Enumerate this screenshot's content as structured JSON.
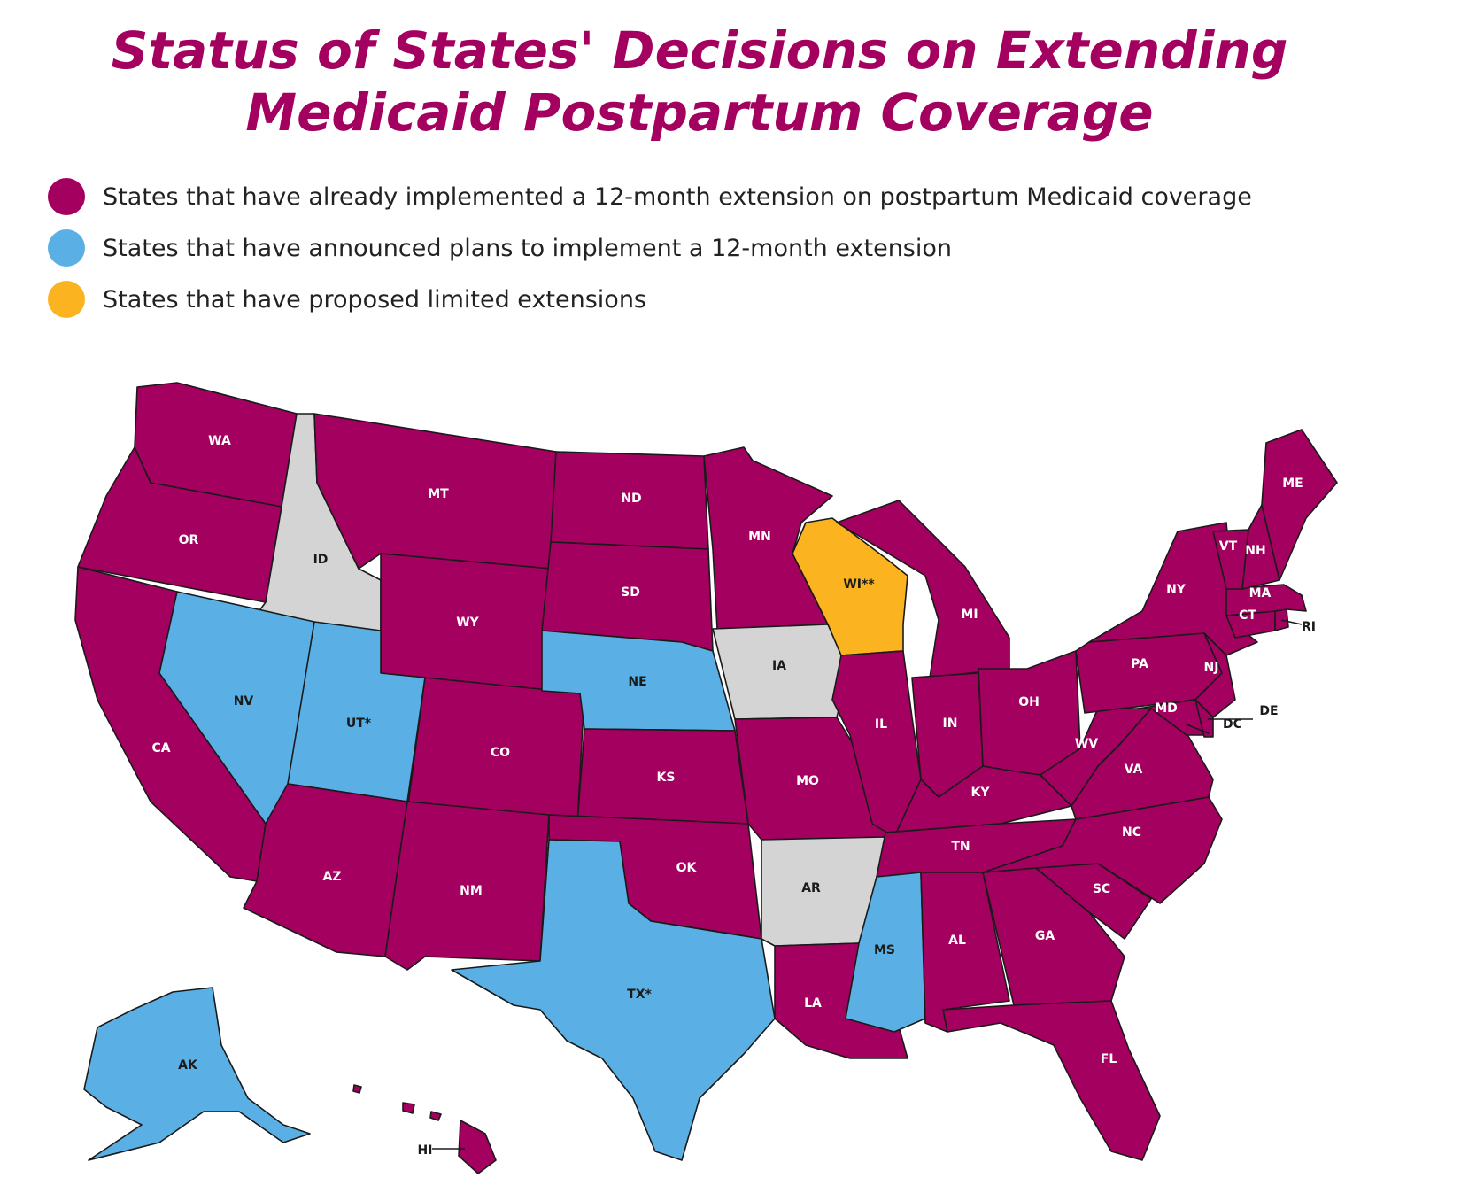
{
  "title_line1": "Status of States' Decisions on Extending",
  "title_line2": "Medicaid Postpartum Coverage",
  "legend": [
    {
      "key": "implemented",
      "label": "States that have already implemented a 12-month extension on postpartum Medicaid coverage",
      "color": "#a3005f"
    },
    {
      "key": "announced",
      "label": "States that have announced plans to implement a 12-month extension",
      "color": "#5ab0e4"
    },
    {
      "key": "limited",
      "label": "States that have proposed limited extensions",
      "color": "#fbb41f"
    }
  ],
  "colors": {
    "implemented": "#a3005f",
    "announced": "#5ab0e4",
    "limited": "#fbb41f",
    "none": "#d4d4d4",
    "border": "#1a1a1a"
  },
  "states": {
    "WA": {
      "label": "WA",
      "status": "implemented"
    },
    "OR": {
      "label": "OR",
      "status": "implemented"
    },
    "CA": {
      "label": "CA",
      "status": "implemented"
    },
    "ID": {
      "label": "ID",
      "status": "none"
    },
    "NV": {
      "label": "NV",
      "status": "announced"
    },
    "MT": {
      "label": "MT",
      "status": "implemented"
    },
    "WY": {
      "label": "WY",
      "status": "implemented"
    },
    "UT": {
      "label": "UT*",
      "status": "announced"
    },
    "AZ": {
      "label": "AZ",
      "status": "implemented"
    },
    "CO": {
      "label": "CO",
      "status": "implemented"
    },
    "NM": {
      "label": "NM",
      "status": "implemented"
    },
    "ND": {
      "label": "ND",
      "status": "implemented"
    },
    "SD": {
      "label": "SD",
      "status": "implemented"
    },
    "NE": {
      "label": "NE",
      "status": "announced"
    },
    "KS": {
      "label": "KS",
      "status": "implemented"
    },
    "OK": {
      "label": "OK",
      "status": "implemented"
    },
    "TX": {
      "label": "TX*",
      "status": "announced"
    },
    "MN": {
      "label": "MN",
      "status": "implemented"
    },
    "IA": {
      "label": "IA",
      "status": "none"
    },
    "MO": {
      "label": "MO",
      "status": "implemented"
    },
    "AR": {
      "label": "AR",
      "status": "none"
    },
    "LA": {
      "label": "LA",
      "status": "implemented"
    },
    "WI": {
      "label": "WI**",
      "status": "limited"
    },
    "IL": {
      "label": "IL",
      "status": "implemented"
    },
    "MI": {
      "label": "MI",
      "status": "implemented"
    },
    "IN": {
      "label": "IN",
      "status": "implemented"
    },
    "OH": {
      "label": "OH",
      "status": "implemented"
    },
    "KY": {
      "label": "KY",
      "status": "implemented"
    },
    "TN": {
      "label": "TN",
      "status": "implemented"
    },
    "MS": {
      "label": "MS",
      "status": "announced"
    },
    "AL": {
      "label": "AL",
      "status": "implemented"
    },
    "GA": {
      "label": "GA",
      "status": "implemented"
    },
    "FL": {
      "label": "FL",
      "status": "implemented"
    },
    "SC": {
      "label": "SC",
      "status": "implemented"
    },
    "NC": {
      "label": "NC",
      "status": "implemented"
    },
    "VA": {
      "label": "VA",
      "status": "implemented"
    },
    "WV": {
      "label": "WV",
      "status": "implemented"
    },
    "PA": {
      "label": "PA",
      "status": "implemented"
    },
    "NY": {
      "label": "NY",
      "status": "implemented"
    },
    "NJ": {
      "label": "NJ",
      "status": "implemented"
    },
    "DE": {
      "label": "DE",
      "status": "implemented"
    },
    "MD": {
      "label": "MD",
      "status": "implemented"
    },
    "DC": {
      "label": "DC",
      "status": "implemented"
    },
    "CT": {
      "label": "CT",
      "status": "implemented"
    },
    "RI": {
      "label": "RI",
      "status": "implemented"
    },
    "MA": {
      "label": "MA",
      "status": "implemented"
    },
    "VT": {
      "label": "VT",
      "status": "implemented"
    },
    "NH": {
      "label": "NH",
      "status": "implemented"
    },
    "ME": {
      "label": "ME",
      "status": "implemented"
    },
    "AK": {
      "label": "AK",
      "status": "announced"
    },
    "HI": {
      "label": "HI",
      "status": "implemented"
    }
  }
}
